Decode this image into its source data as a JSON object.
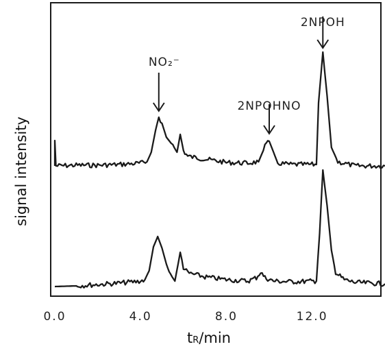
{
  "chart_data": {
    "type": "line",
    "title": "",
    "xlabel_main": "t",
    "xlabel_sub": "R",
    "xlabel_tail": "/min",
    "ylabel": "signal intensity",
    "xlim": [
      -0.6,
      15.8
    ],
    "x_ticks": [
      "0.0",
      "4.0",
      "8.0",
      "12.0"
    ],
    "grid": false,
    "legend": "none",
    "series": [
      {
        "baseline": 242,
        "points": [
          [
            0.0,
            242
          ],
          [
            0.0,
            205
          ],
          [
            0.05,
            242
          ],
          [
            1.0,
            241
          ],
          [
            2.0,
            241
          ],
          [
            3.0,
            240
          ],
          [
            4.0,
            238
          ],
          [
            4.3,
            236
          ],
          [
            4.5,
            222
          ],
          [
            4.7,
            190
          ],
          [
            4.85,
            170
          ],
          [
            5.0,
            180
          ],
          [
            5.2,
            200
          ],
          [
            5.5,
            212
          ],
          [
            5.7,
            222
          ],
          [
            5.85,
            196
          ],
          [
            6.0,
            220
          ],
          [
            6.2,
            228
          ],
          [
            7.0,
            232
          ],
          [
            8.0,
            237
          ],
          [
            9.0,
            238
          ],
          [
            9.5,
            236
          ],
          [
            9.8,
            214
          ],
          [
            10.0,
            206
          ],
          [
            10.2,
            222
          ],
          [
            10.4,
            238
          ],
          [
            11.0,
            240
          ],
          [
            12.0,
            240
          ],
          [
            12.2,
            240
          ],
          [
            12.3,
            150
          ],
          [
            12.5,
            76
          ],
          [
            12.7,
            140
          ],
          [
            12.9,
            215
          ],
          [
            13.2,
            236
          ],
          [
            14.0,
            242
          ],
          [
            15.4,
            242
          ]
        ]
      },
      {
        "baseline": 418,
        "points": [
          [
            0.0,
            418
          ],
          [
            1.0,
            417
          ],
          [
            2.0,
            415
          ],
          [
            3.0,
            413
          ],
          [
            4.0,
            410
          ],
          [
            4.2,
            408
          ],
          [
            4.4,
            395
          ],
          [
            4.6,
            360
          ],
          [
            4.8,
            345
          ],
          [
            5.0,
            362
          ],
          [
            5.2,
            385
          ],
          [
            5.4,
            402
          ],
          [
            5.6,
            410
          ],
          [
            5.75,
            385
          ],
          [
            5.85,
            368
          ],
          [
            6.0,
            390
          ],
          [
            6.2,
            398
          ],
          [
            7.0,
            404
          ],
          [
            8.0,
            408
          ],
          [
            9.0,
            410
          ],
          [
            9.4,
            405
          ],
          [
            9.6,
            397
          ],
          [
            9.8,
            405
          ],
          [
            10.2,
            410
          ],
          [
            11.0,
            411
          ],
          [
            12.2,
            410
          ],
          [
            12.35,
            340
          ],
          [
            12.5,
            248
          ],
          [
            12.7,
            300
          ],
          [
            12.9,
            365
          ],
          [
            13.1,
            398
          ],
          [
            13.5,
            408
          ],
          [
            14.0,
            412
          ],
          [
            15.4,
            414
          ]
        ]
      }
    ],
    "annotations": [
      {
        "label": "NO₂⁻",
        "x": 4.85,
        "series": 0
      },
      {
        "label": "2NPOHNO",
        "x": 10.0,
        "series": 0
      },
      {
        "label": "2NPOH",
        "x": 12.5,
        "series": 0
      }
    ]
  }
}
